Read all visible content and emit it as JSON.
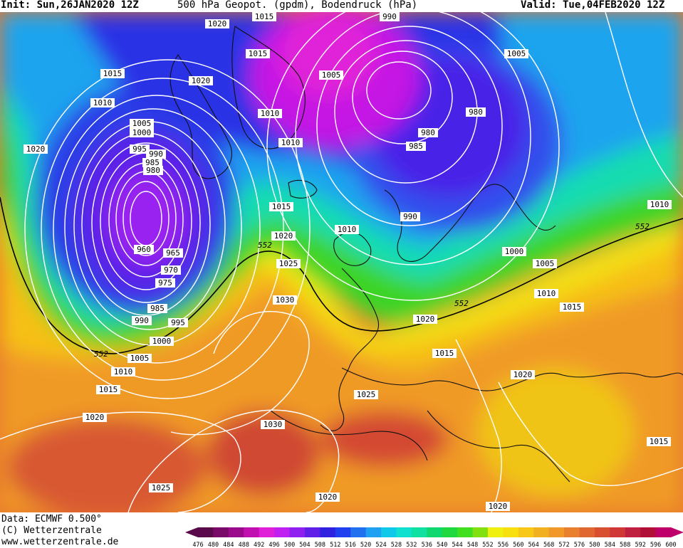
{
  "header": {
    "init": "Init: Sun,26JAN2020 12Z",
    "title": "500 hPa Geopot. (gpdm), Bodendruck (hPa)",
    "valid": "Valid: Tue,04FEB2020 12Z"
  },
  "footer": {
    "data_source": "Data: ECMWF   0.500°",
    "copyright": "(C) Wetterzentrale",
    "website": "www.wetterzentrale.de"
  },
  "colorbar": {
    "labels": [
      "476",
      "480",
      "484",
      "488",
      "492",
      "496",
      "500",
      "504",
      "508",
      "512",
      "516",
      "520",
      "524",
      "528",
      "532",
      "536",
      "540",
      "544",
      "548",
      "552",
      "556",
      "560",
      "564",
      "568",
      "572",
      "576",
      "580",
      "584",
      "588",
      "592",
      "596",
      "600"
    ],
    "colors": [
      "#5a0a4a",
      "#7a0a6a",
      "#9a0a8a",
      "#c010b0",
      "#e020d8",
      "#c020f0",
      "#9020f0",
      "#6020e8",
      "#3020e0",
      "#2040f0",
      "#2070f0",
      "#20a0f0",
      "#10c8e8",
      "#10e0d0",
      "#10e0a0",
      "#10d870",
      "#20d840",
      "#40e020",
      "#80e010",
      "#f0f010",
      "#f8e010",
      "#f8c818",
      "#f0b020",
      "#f09828",
      "#e88030",
      "#e06830",
      "#d85030",
      "#d03838",
      "#c02040",
      "#b01038",
      "#c0006a"
    ]
  },
  "pressure_labels": [
    "1015",
    "990",
    "1020",
    "1015",
    "1005",
    "1015",
    "1020",
    "1005",
    "1010",
    "1010",
    "1005",
    "1000",
    "1010",
    "980",
    "980",
    "995",
    "990",
    "985",
    "985",
    "980",
    "1020",
    "1015",
    "990",
    "1010",
    "1000",
    "960",
    "965",
    "970",
    "975",
    "985",
    "990",
    "995",
    "1000",
    "1005",
    "1010",
    "1015",
    "1020",
    "1025",
    "1030",
    "1020",
    "1010",
    "1015",
    "1005",
    "1010",
    "1015",
    "1020",
    "1025",
    "1030",
    "1020",
    "1025",
    "1015",
    "1020",
    "1020",
    "1015"
  ],
  "geopotential_labels": [
    "552",
    "552",
    "552",
    "552",
    "552"
  ]
}
